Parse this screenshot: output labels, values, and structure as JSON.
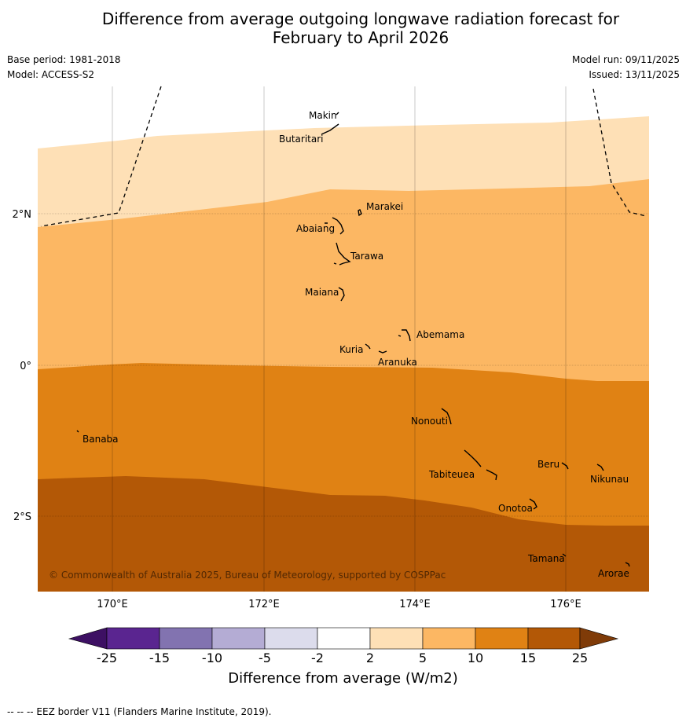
{
  "title_line1": "Difference from average outgoing longwave radiation forecast for",
  "title_line2": "February to April 2026",
  "base_period": "Base period: 1981-2018",
  "model": "Model: ACCESS-S2",
  "model_run": "Model run: 09/11/2025",
  "issued": "Issued: 13/11/2025",
  "copyright": "© Commonwealth of Australia 2025, Bureau of Meteorology, supported by COSPPac",
  "footer_note": "--  --  -- EEZ border V11 (Flanders Marine Institute, 2019).",
  "axes": {
    "lon_labels": [
      "170°E",
      "172°E",
      "174°E",
      "176°E"
    ],
    "lat_labels": [
      "2°N",
      "0°",
      "2°S"
    ]
  },
  "islands": [
    {
      "name": "Makin"
    },
    {
      "name": "Butaritari"
    },
    {
      "name": "Marakei"
    },
    {
      "name": "Abaiang"
    },
    {
      "name": "Tarawa"
    },
    {
      "name": "Maiana"
    },
    {
      "name": "Abemama"
    },
    {
      "name": "Kuria"
    },
    {
      "name": "Aranuka"
    },
    {
      "name": "Nonouti"
    },
    {
      "name": "Banaba"
    },
    {
      "name": "Beru"
    },
    {
      "name": "Tabiteuea"
    },
    {
      "name": "Nikunau"
    },
    {
      "name": "Onotoa"
    },
    {
      "name": "Tamana"
    },
    {
      "name": "Arorae"
    }
  ],
  "colorbar": {
    "title": "Difference from average (W/m2)",
    "tick_labels": [
      "-25",
      "-15",
      "-10",
      "-5",
      "-2",
      "2",
      "5",
      "10",
      "15",
      "25"
    ],
    "colors": [
      "#3d1063",
      "#5a2590",
      "#8273b0",
      "#b4acd4",
      "#dcdcec",
      "#ffffff",
      "#fee0b6",
      "#fcb763",
      "#e08214",
      "#b35806",
      "#7f3b08"
    ]
  },
  "chart_data": {
    "type": "contour_map",
    "variable": "Difference from average outgoing longwave radiation (W/m2)",
    "levels": [
      -25,
      -15,
      -10,
      -5,
      -2,
      2,
      5,
      10,
      15,
      25
    ],
    "regions_present": [
      {
        "range": [
          2,
          5
        ],
        "description": "north of ~2.2°N to 3.5°N"
      },
      {
        "range": [
          5,
          10
        ],
        "description": "~0° to ~2.2°N"
      },
      {
        "range": [
          10,
          15
        ],
        "description": "~0° to ~1.5°S"
      },
      {
        "range": [
          15,
          25
        ],
        "description": "south of ~1.5°S to ~2°S"
      }
    ],
    "lon_range": [
      169,
      177
    ],
    "lat_range": [
      -3,
      3.5
    ]
  }
}
